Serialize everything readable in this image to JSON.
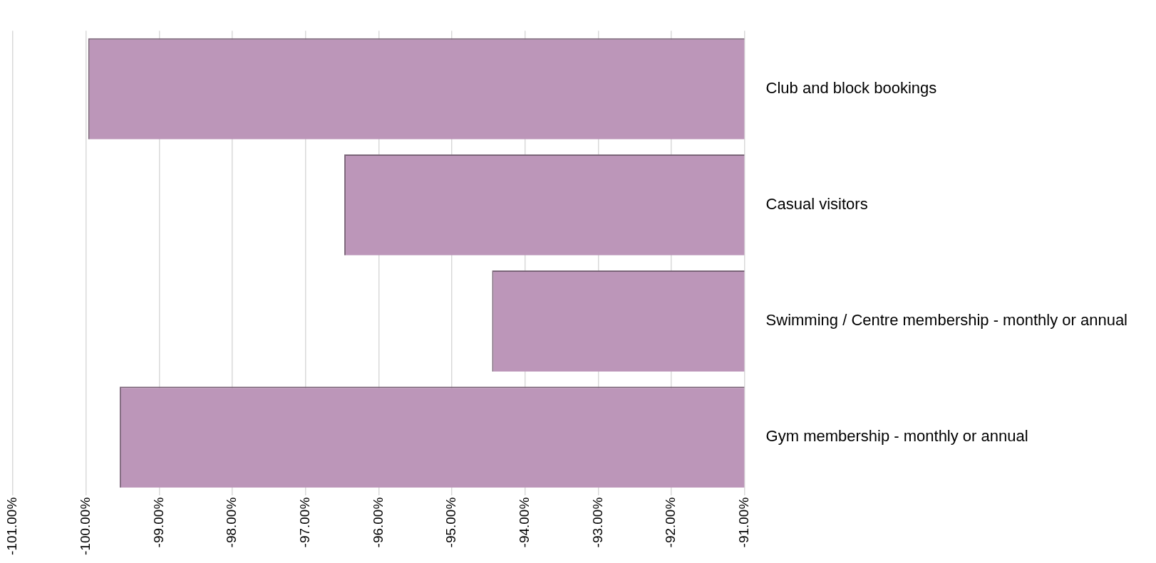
{
  "chart_data": {
    "type": "bar",
    "orientation": "horizontal",
    "categories": [
      "Club and block bookings",
      "Casual visitors",
      "Swimming / Centre membership - monthly or annual",
      "Gym membership - monthly or annual"
    ],
    "values": [
      -99.97,
      -96.47,
      -94.45,
      -99.54
    ],
    "color": "#bc96b9",
    "xlim": [
      -101,
      -91
    ],
    "xticks": [
      {
        "value": -101,
        "label": "-101.00%"
      },
      {
        "value": -100,
        "label": "-100.00%"
      },
      {
        "value": -99,
        "label": "-99.00%"
      },
      {
        "value": -98,
        "label": "-98.00%"
      },
      {
        "value": -97,
        "label": "-97.00%"
      },
      {
        "value": -96,
        "label": "-96.00%"
      },
      {
        "value": -95,
        "label": "-95.00%"
      },
      {
        "value": -94,
        "label": "-94.00%"
      },
      {
        "value": -93,
        "label": "-93.00%"
      },
      {
        "value": -92,
        "label": "-92.00%"
      },
      {
        "value": -91,
        "label": "-91.00%"
      }
    ],
    "grid": "x",
    "legend": false
  }
}
